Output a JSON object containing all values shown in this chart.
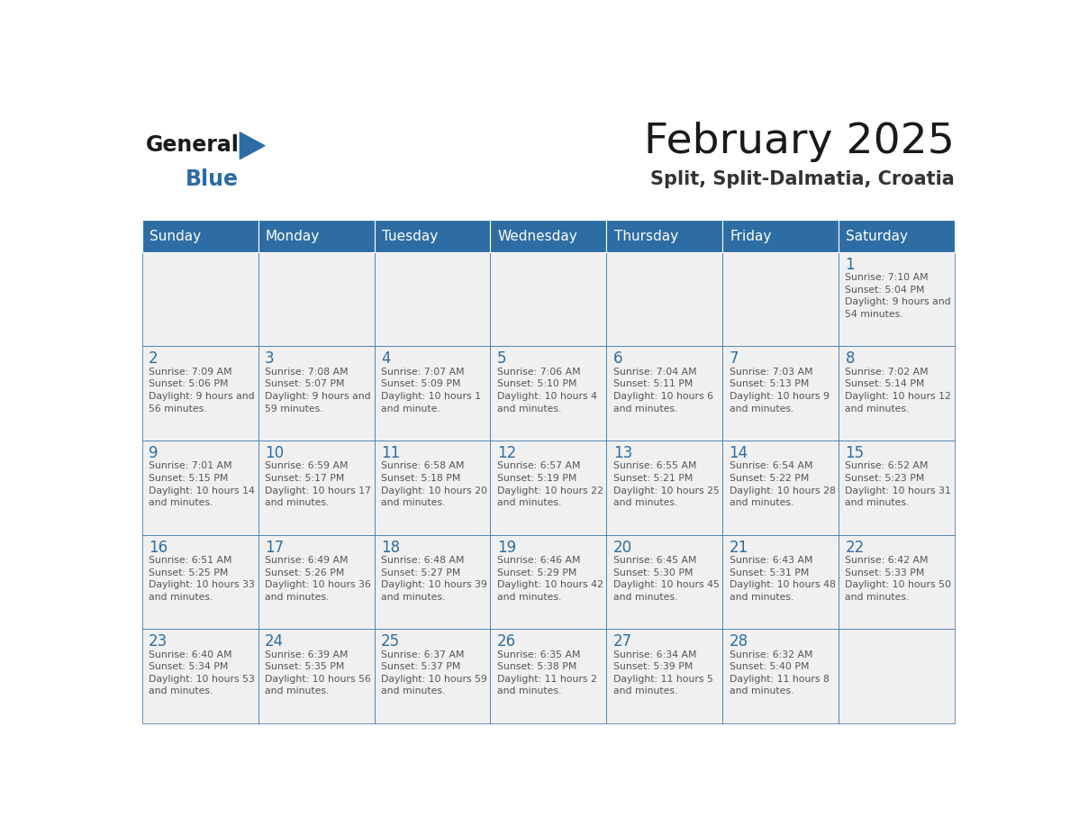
{
  "title": "February 2025",
  "subtitle": "Split, Split-Dalmatia, Croatia",
  "days_of_week": [
    "Sunday",
    "Monday",
    "Tuesday",
    "Wednesday",
    "Thursday",
    "Friday",
    "Saturday"
  ],
  "header_bg": "#2E6DA4",
  "header_text": "#FFFFFF",
  "cell_bg_light": "#F0F0F0",
  "cell_border": "#2E6DA4",
  "day_number_color": "#2E6DA4",
  "cell_text_color": "#555555",
  "title_color": "#1A1A1A",
  "subtitle_color": "#333333",
  "logo_general_color": "#1A1A1A",
  "logo_blue_color": "#2E6DA4",
  "calendar_data": [
    [
      null,
      null,
      null,
      null,
      null,
      null,
      {
        "day": 1,
        "sunrise": "7:10 AM",
        "sunset": "5:04 PM",
        "daylight": "9 hours and 54 minutes."
      }
    ],
    [
      {
        "day": 2,
        "sunrise": "7:09 AM",
        "sunset": "5:06 PM",
        "daylight": "9 hours and 56 minutes."
      },
      {
        "day": 3,
        "sunrise": "7:08 AM",
        "sunset": "5:07 PM",
        "daylight": "9 hours and 59 minutes."
      },
      {
        "day": 4,
        "sunrise": "7:07 AM",
        "sunset": "5:09 PM",
        "daylight": "10 hours and 1 minute."
      },
      {
        "day": 5,
        "sunrise": "7:06 AM",
        "sunset": "5:10 PM",
        "daylight": "10 hours and 4 minutes."
      },
      {
        "day": 6,
        "sunrise": "7:04 AM",
        "sunset": "5:11 PM",
        "daylight": "10 hours and 6 minutes."
      },
      {
        "day": 7,
        "sunrise": "7:03 AM",
        "sunset": "5:13 PM",
        "daylight": "10 hours and 9 minutes."
      },
      {
        "day": 8,
        "sunrise": "7:02 AM",
        "sunset": "5:14 PM",
        "daylight": "10 hours and 12 minutes."
      }
    ],
    [
      {
        "day": 9,
        "sunrise": "7:01 AM",
        "sunset": "5:15 PM",
        "daylight": "10 hours and 14 minutes."
      },
      {
        "day": 10,
        "sunrise": "6:59 AM",
        "sunset": "5:17 PM",
        "daylight": "10 hours and 17 minutes."
      },
      {
        "day": 11,
        "sunrise": "6:58 AM",
        "sunset": "5:18 PM",
        "daylight": "10 hours and 20 minutes."
      },
      {
        "day": 12,
        "sunrise": "6:57 AM",
        "sunset": "5:19 PM",
        "daylight": "10 hours and 22 minutes."
      },
      {
        "day": 13,
        "sunrise": "6:55 AM",
        "sunset": "5:21 PM",
        "daylight": "10 hours and 25 minutes."
      },
      {
        "day": 14,
        "sunrise": "6:54 AM",
        "sunset": "5:22 PM",
        "daylight": "10 hours and 28 minutes."
      },
      {
        "day": 15,
        "sunrise": "6:52 AM",
        "sunset": "5:23 PM",
        "daylight": "10 hours and 31 minutes."
      }
    ],
    [
      {
        "day": 16,
        "sunrise": "6:51 AM",
        "sunset": "5:25 PM",
        "daylight": "10 hours and 33 minutes."
      },
      {
        "day": 17,
        "sunrise": "6:49 AM",
        "sunset": "5:26 PM",
        "daylight": "10 hours and 36 minutes."
      },
      {
        "day": 18,
        "sunrise": "6:48 AM",
        "sunset": "5:27 PM",
        "daylight": "10 hours and 39 minutes."
      },
      {
        "day": 19,
        "sunrise": "6:46 AM",
        "sunset": "5:29 PM",
        "daylight": "10 hours and 42 minutes."
      },
      {
        "day": 20,
        "sunrise": "6:45 AM",
        "sunset": "5:30 PM",
        "daylight": "10 hours and 45 minutes."
      },
      {
        "day": 21,
        "sunrise": "6:43 AM",
        "sunset": "5:31 PM",
        "daylight": "10 hours and 48 minutes."
      },
      {
        "day": 22,
        "sunrise": "6:42 AM",
        "sunset": "5:33 PM",
        "daylight": "10 hours and 50 minutes."
      }
    ],
    [
      {
        "day": 23,
        "sunrise": "6:40 AM",
        "sunset": "5:34 PM",
        "daylight": "10 hours and 53 minutes."
      },
      {
        "day": 24,
        "sunrise": "6:39 AM",
        "sunset": "5:35 PM",
        "daylight": "10 hours and 56 minutes."
      },
      {
        "day": 25,
        "sunrise": "6:37 AM",
        "sunset": "5:37 PM",
        "daylight": "10 hours and 59 minutes."
      },
      {
        "day": 26,
        "sunrise": "6:35 AM",
        "sunset": "5:38 PM",
        "daylight": "11 hours and 2 minutes."
      },
      {
        "day": 27,
        "sunrise": "6:34 AM",
        "sunset": "5:39 PM",
        "daylight": "11 hours and 5 minutes."
      },
      {
        "day": 28,
        "sunrise": "6:32 AM",
        "sunset": "5:40 PM",
        "daylight": "11 hours and 8 minutes."
      },
      null
    ]
  ]
}
